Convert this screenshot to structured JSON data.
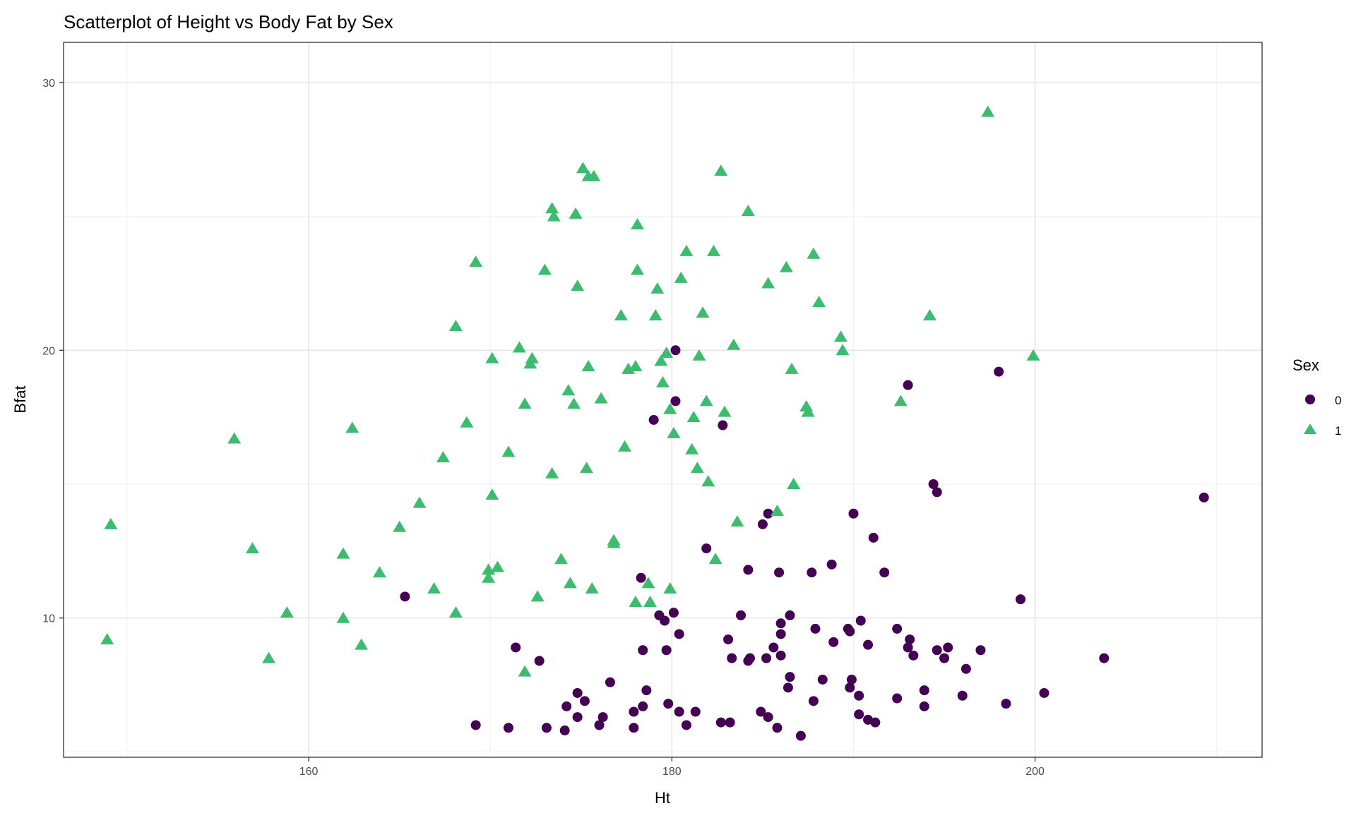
{
  "chart_data": {
    "type": "scatter",
    "title": "Scatterplot of Height vs Body Fat by Sex",
    "xlabel": "Ht",
    "ylabel": "Bfat",
    "xlim": [
      146.5,
      212.5
    ],
    "ylim": [
      4.8,
      31.5
    ],
    "x_major_ticks": [
      160,
      180,
      200
    ],
    "x_minor_ticks": [
      150,
      170,
      190,
      210
    ],
    "y_major_ticks": [
      10,
      20,
      30
    ],
    "y_minor_ticks": [
      5,
      15,
      25
    ],
    "x_tick_labels": [
      "160",
      "180",
      "200"
    ],
    "y_tick_labels": [
      "10",
      "20",
      "30"
    ],
    "grid": true,
    "legend": {
      "title": "Sex",
      "position": "right",
      "entries": [
        {
          "label": "0",
          "shape": "circle",
          "color": "#440154"
        },
        {
          "label": "1",
          "shape": "triangle",
          "color": "#3dbc6f"
        }
      ]
    },
    "colors": {
      "sex0": "#440154",
      "sex1": "#3dbc6f"
    },
    "series": [
      {
        "name": "0",
        "shape": "circle",
        "color": "#440154",
        "points": [
          [
            165.3,
            10.8
          ],
          [
            169.2,
            6.0
          ],
          [
            171.0,
            5.9
          ],
          [
            171.4,
            8.9
          ],
          [
            172.7,
            8.4
          ],
          [
            173.1,
            5.9
          ],
          [
            174.1,
            5.8
          ],
          [
            174.2,
            6.7
          ],
          [
            174.8,
            7.2
          ],
          [
            174.8,
            6.3
          ],
          [
            175.2,
            6.9
          ],
          [
            176.0,
            6.0
          ],
          [
            176.2,
            6.3
          ],
          [
            176.6,
            7.6
          ],
          [
            177.9,
            6.5
          ],
          [
            177.9,
            5.9
          ],
          [
            178.3,
            11.5
          ],
          [
            178.4,
            8.8
          ],
          [
            178.4,
            6.7
          ],
          [
            178.6,
            7.3
          ],
          [
            179.0,
            17.4
          ],
          [
            179.3,
            10.1
          ],
          [
            179.6,
            9.9
          ],
          [
            179.7,
            8.8
          ],
          [
            179.8,
            6.8
          ],
          [
            180.1,
            10.2
          ],
          [
            180.2,
            20.0
          ],
          [
            180.2,
            18.1
          ],
          [
            180.4,
            9.4
          ],
          [
            180.4,
            6.5
          ],
          [
            180.8,
            6.0
          ],
          [
            181.3,
            6.5
          ],
          [
            181.9,
            12.6
          ],
          [
            182.7,
            6.1
          ],
          [
            182.8,
            17.2
          ],
          [
            183.1,
            9.2
          ],
          [
            183.2,
            6.1
          ],
          [
            183.3,
            8.5
          ],
          [
            183.8,
            10.1
          ],
          [
            184.2,
            11.8
          ],
          [
            184.2,
            8.4
          ],
          [
            184.3,
            8.5
          ],
          [
            184.9,
            6.5
          ],
          [
            185.0,
            13.5
          ],
          [
            185.2,
            8.5
          ],
          [
            185.3,
            6.3
          ],
          [
            185.3,
            13.9
          ],
          [
            185.6,
            8.9
          ],
          [
            185.8,
            5.9
          ],
          [
            185.9,
            11.7
          ],
          [
            186.0,
            9.4
          ],
          [
            186.0,
            8.6
          ],
          [
            186.0,
            9.8
          ],
          [
            186.4,
            7.4
          ],
          [
            186.5,
            7.8
          ],
          [
            186.5,
            10.1
          ],
          [
            187.1,
            5.6
          ],
          [
            187.7,
            11.7
          ],
          [
            187.8,
            6.9
          ],
          [
            187.9,
            9.6
          ],
          [
            188.3,
            7.7
          ],
          [
            188.8,
            12.0
          ],
          [
            188.9,
            9.1
          ],
          [
            189.7,
            9.6
          ],
          [
            189.8,
            9.5
          ],
          [
            189.8,
            7.4
          ],
          [
            189.9,
            7.7
          ],
          [
            190.0,
            13.9
          ],
          [
            190.3,
            7.1
          ],
          [
            190.3,
            6.4
          ],
          [
            190.4,
            9.9
          ],
          [
            190.8,
            9.0
          ],
          [
            190.8,
            6.2
          ],
          [
            191.1,
            13.0
          ],
          [
            191.2,
            6.1
          ],
          [
            191.7,
            11.7
          ],
          [
            192.4,
            9.6
          ],
          [
            192.4,
            7.0
          ],
          [
            193.0,
            18.7
          ],
          [
            193.0,
            8.9
          ],
          [
            193.1,
            9.2
          ],
          [
            193.3,
            8.6
          ],
          [
            193.9,
            7.3
          ],
          [
            193.9,
            6.7
          ],
          [
            194.4,
            15.0
          ],
          [
            194.6,
            14.7
          ],
          [
            194.6,
            8.8
          ],
          [
            195.0,
            8.5
          ],
          [
            195.2,
            8.9
          ],
          [
            196.0,
            7.1
          ],
          [
            196.2,
            8.1
          ],
          [
            197.0,
            8.8
          ],
          [
            198.0,
            19.2
          ],
          [
            198.4,
            6.8
          ],
          [
            199.2,
            10.7
          ],
          [
            200.5,
            7.2
          ],
          [
            203.8,
            8.5
          ],
          [
            209.3,
            14.5
          ]
        ]
      },
      {
        "name": "1",
        "shape": "triangle",
        "color": "#3dbc6f",
        "points": [
          [
            148.9,
            9.2
          ],
          [
            149.1,
            13.5
          ],
          [
            155.9,
            16.7
          ],
          [
            156.9,
            12.6
          ],
          [
            157.8,
            8.5
          ],
          [
            158.8,
            10.2
          ],
          [
            161.9,
            12.4
          ],
          [
            161.9,
            10.0
          ],
          [
            162.4,
            17.1
          ],
          [
            162.9,
            9.0
          ],
          [
            163.9,
            11.7
          ],
          [
            165.0,
            13.4
          ],
          [
            166.1,
            14.3
          ],
          [
            166.9,
            11.1
          ],
          [
            167.4,
            16.0
          ],
          [
            168.1,
            10.2
          ],
          [
            168.1,
            20.9
          ],
          [
            168.7,
            17.3
          ],
          [
            169.2,
            23.3
          ],
          [
            169.9,
            11.8
          ],
          [
            169.9,
            11.5
          ],
          [
            170.1,
            19.7
          ],
          [
            170.1,
            14.6
          ],
          [
            170.4,
            11.9
          ],
          [
            171.0,
            16.2
          ],
          [
            171.6,
            20.1
          ],
          [
            171.9,
            8.0
          ],
          [
            171.9,
            18.0
          ],
          [
            172.2,
            19.5
          ],
          [
            172.3,
            19.7
          ],
          [
            172.6,
            10.8
          ],
          [
            173.0,
            23.0
          ],
          [
            173.4,
            25.3
          ],
          [
            173.4,
            15.4
          ],
          [
            173.5,
            25.0
          ],
          [
            173.9,
            12.2
          ],
          [
            174.3,
            18.5
          ],
          [
            174.4,
            11.3
          ],
          [
            174.6,
            18.0
          ],
          [
            174.7,
            25.1
          ],
          [
            174.8,
            22.4
          ],
          [
            175.1,
            26.8
          ],
          [
            175.3,
            15.6
          ],
          [
            175.4,
            26.5
          ],
          [
            175.4,
            19.4
          ],
          [
            175.6,
            11.1
          ],
          [
            175.7,
            26.5
          ],
          [
            176.1,
            18.2
          ],
          [
            176.8,
            12.8
          ],
          [
            176.8,
            12.9
          ],
          [
            177.2,
            21.3
          ],
          [
            177.4,
            16.4
          ],
          [
            177.6,
            19.3
          ],
          [
            178.0,
            19.4
          ],
          [
            178.0,
            10.6
          ],
          [
            178.1,
            24.7
          ],
          [
            178.1,
            23.0
          ],
          [
            178.7,
            11.3
          ],
          [
            178.8,
            10.6
          ],
          [
            179.1,
            21.3
          ],
          [
            179.2,
            22.3
          ],
          [
            179.4,
            19.6
          ],
          [
            179.5,
            18.8
          ],
          [
            179.7,
            19.9
          ],
          [
            179.9,
            11.1
          ],
          [
            179.9,
            17.8
          ],
          [
            180.1,
            16.9
          ],
          [
            180.5,
            22.7
          ],
          [
            180.8,
            23.7
          ],
          [
            181.1,
            16.3
          ],
          [
            181.2,
            17.5
          ],
          [
            181.4,
            15.6
          ],
          [
            181.5,
            19.8
          ],
          [
            181.7,
            21.4
          ],
          [
            181.9,
            18.1
          ],
          [
            182.0,
            15.1
          ],
          [
            182.3,
            23.7
          ],
          [
            182.4,
            12.2
          ],
          [
            182.7,
            26.7
          ],
          [
            182.9,
            17.7
          ],
          [
            183.4,
            20.2
          ],
          [
            183.6,
            13.6
          ],
          [
            184.2,
            25.2
          ],
          [
            185.3,
            22.5
          ],
          [
            185.8,
            14.0
          ],
          [
            186.3,
            23.1
          ],
          [
            186.6,
            19.3
          ],
          [
            186.7,
            15.0
          ],
          [
            187.4,
            17.9
          ],
          [
            187.5,
            17.7
          ],
          [
            187.8,
            23.6
          ],
          [
            188.1,
            21.8
          ],
          [
            189.3,
            20.5
          ],
          [
            189.4,
            20.0
          ],
          [
            192.6,
            18.1
          ],
          [
            194.2,
            21.3
          ],
          [
            197.4,
            28.9
          ],
          [
            199.9,
            19.8
          ]
        ]
      }
    ]
  }
}
